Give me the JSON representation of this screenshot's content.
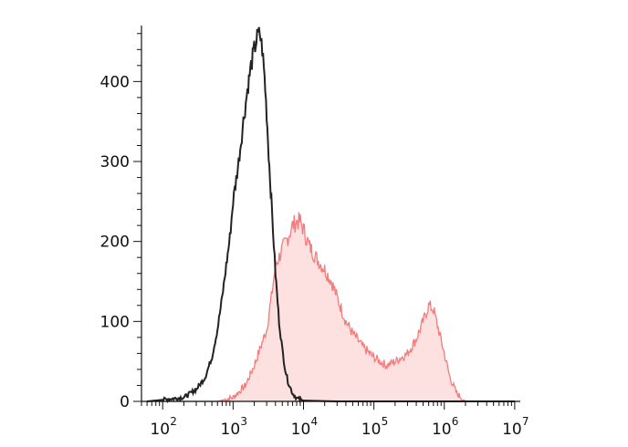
{
  "chart_data": {
    "type": "area",
    "title": "",
    "xlabel": "",
    "ylabel": "",
    "x_scale": "log",
    "xlim": [
      50,
      12000000
    ],
    "ylim": [
      0,
      470
    ],
    "grid": false,
    "legend": "none",
    "y_ticks": [
      {
        "value": 0,
        "label": "0"
      },
      {
        "value": 100,
        "label": "100"
      },
      {
        "value": 200,
        "label": "200"
      },
      {
        "value": 300,
        "label": "300"
      },
      {
        "value": 400,
        "label": "400"
      }
    ],
    "x_ticks": [
      {
        "value": 100,
        "base": "10",
        "exp": "2"
      },
      {
        "value": 1000,
        "base": "10",
        "exp": "3"
      },
      {
        "value": 10000,
        "base": "10",
        "exp": "4"
      },
      {
        "value": 100000,
        "base": "10",
        "exp": "5"
      },
      {
        "value": 1000000,
        "base": "10",
        "exp": "6"
      },
      {
        "value": 10000000,
        "base": "10",
        "exp": "7"
      }
    ],
    "series": [
      {
        "style": "line",
        "color": "#222222",
        "points": [
          [
            60,
            0
          ],
          [
            100,
            2
          ],
          [
            200,
            5
          ],
          [
            300,
            15
          ],
          [
            400,
            30
          ],
          [
            500,
            55
          ],
          [
            600,
            90
          ],
          [
            700,
            130
          ],
          [
            800,
            170
          ],
          [
            900,
            205
          ],
          [
            1000,
            250
          ],
          [
            1200,
            300
          ],
          [
            1400,
            350
          ],
          [
            1600,
            390
          ],
          [
            1800,
            420
          ],
          [
            2000,
            440
          ],
          [
            2200,
            455
          ],
          [
            2400,
            460
          ],
          [
            2600,
            440
          ],
          [
            2800,
            405
          ],
          [
            3000,
            360
          ],
          [
            3200,
            310
          ],
          [
            3500,
            250
          ],
          [
            4000,
            160
          ],
          [
            4500,
            100
          ],
          [
            5000,
            65
          ],
          [
            5500,
            40
          ],
          [
            6000,
            25
          ],
          [
            7000,
            10
          ],
          [
            8000,
            4
          ],
          [
            10000,
            1
          ],
          [
            30000,
            0
          ],
          [
            10000000,
            0
          ]
        ]
      },
      {
        "style": "filled",
        "color": "#f47c7c",
        "fill": "#fde0e0",
        "points": [
          [
            60,
            0
          ],
          [
            600,
            0
          ],
          [
            1000,
            5
          ],
          [
            1500,
            20
          ],
          [
            2000,
            45
          ],
          [
            3000,
            90
          ],
          [
            3500,
            130
          ],
          [
            4000,
            170
          ],
          [
            5000,
            190
          ],
          [
            6000,
            205
          ],
          [
            7000,
            220
          ],
          [
            8000,
            225
          ],
          [
            9000,
            225
          ],
          [
            10000,
            215
          ],
          [
            12000,
            195
          ],
          [
            15000,
            180
          ],
          [
            20000,
            165
          ],
          [
            25000,
            150
          ],
          [
            30000,
            130
          ],
          [
            40000,
            100
          ],
          [
            50000,
            85
          ],
          [
            70000,
            68
          ],
          [
            100000,
            55
          ],
          [
            150000,
            45
          ],
          [
            200000,
            50
          ],
          [
            300000,
            60
          ],
          [
            400000,
            78
          ],
          [
            500000,
            100
          ],
          [
            600000,
            120
          ],
          [
            700000,
            115
          ],
          [
            800000,
            95
          ],
          [
            1000000,
            60
          ],
          [
            1200000,
            30
          ],
          [
            1500000,
            10
          ],
          [
            2000000,
            0
          ],
          [
            10000000,
            0
          ]
        ]
      }
    ]
  }
}
